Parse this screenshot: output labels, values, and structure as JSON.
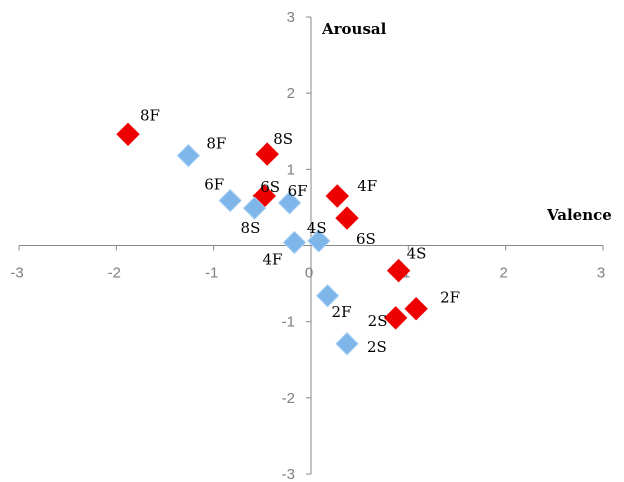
{
  "chart_data": {
    "type": "scatter",
    "xlabel": "Valence",
    "ylabel": "Arousal",
    "xlim": [
      -3,
      3
    ],
    "ylim": [
      -3,
      3
    ],
    "x_ticks": [
      "-3",
      "-2",
      "-1",
      "0",
      "1",
      "2",
      "3"
    ],
    "y_ticks": [
      "-3",
      "-2",
      "-1",
      "0",
      "1",
      "2",
      "3"
    ],
    "grid": false,
    "legend": "none",
    "marker": "diamond",
    "colors": {
      "red": "#ee0000",
      "blue": "#7eb6ea",
      "blue_light": "#a8d0f5",
      "axis": "#888888"
    },
    "series": [
      {
        "color": "red",
        "points": [
          {
            "label": "8F",
            "x": -1.88,
            "y": 1.46
          },
          {
            "label": "8S",
            "x": -0.45,
            "y": 1.2
          },
          {
            "label": "6S",
            "x": -0.48,
            "y": 0.65
          },
          {
            "label": "4F",
            "x": 0.27,
            "y": 0.65
          },
          {
            "label": "6S",
            "x": 0.37,
            "y": 0.36
          },
          {
            "label": "4S",
            "x": 0.9,
            "y": -0.33
          },
          {
            "label": "2F",
            "x": 1.08,
            "y": -0.83
          },
          {
            "label": "2S",
            "x": 0.87,
            "y": -0.95
          }
        ]
      },
      {
        "color": "blue",
        "points": [
          {
            "label": "8F",
            "x": -1.26,
            "y": 1.18
          },
          {
            "label": "6F",
            "x": -0.83,
            "y": 0.59
          },
          {
            "label": "8S",
            "x": -0.58,
            "y": 0.49
          },
          {
            "label": "6F",
            "x": -0.22,
            "y": 0.56
          },
          {
            "label": "4F",
            "x": -0.17,
            "y": 0.04
          },
          {
            "label": "4S",
            "x": 0.08,
            "y": 0.06
          },
          {
            "label": "2F",
            "x": 0.17,
            "y": -0.66
          },
          {
            "label": "2S",
            "x": 0.37,
            "y": -1.29
          }
        ]
      }
    ]
  }
}
